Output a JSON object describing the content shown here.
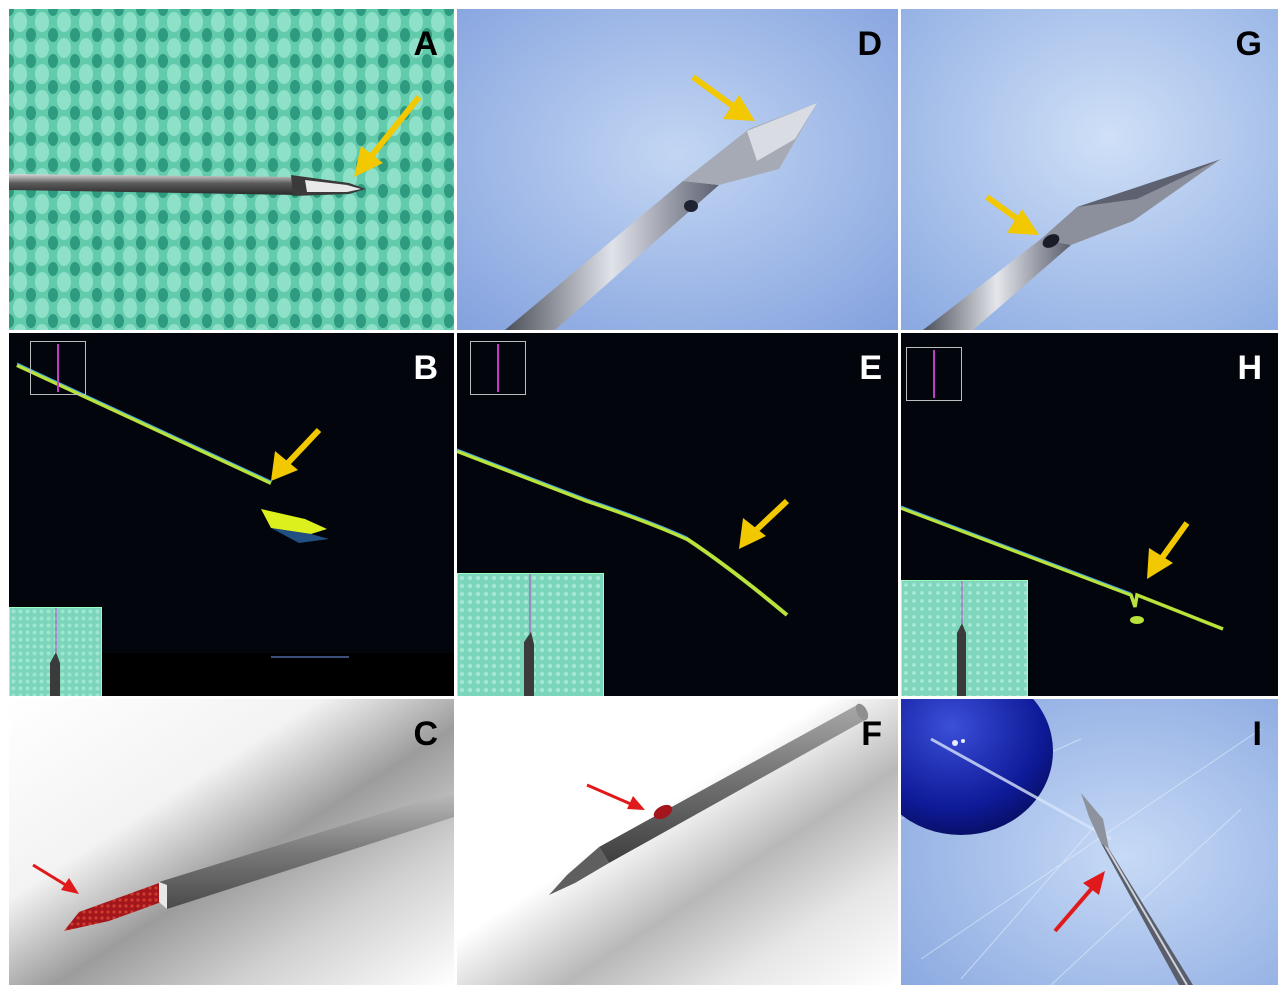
{
  "panels": [
    {
      "id": "A",
      "label": "A",
      "kind": "photo-fabric"
    },
    {
      "id": "B",
      "label": "B",
      "kind": "oct-scan"
    },
    {
      "id": "C",
      "label": "C",
      "kind": "render"
    },
    {
      "id": "D",
      "label": "D",
      "kind": "photo-blue"
    },
    {
      "id": "E",
      "label": "E",
      "kind": "oct-scan"
    },
    {
      "id": "F",
      "label": "F",
      "kind": "render"
    },
    {
      "id": "G",
      "label": "G",
      "kind": "photo-blue"
    },
    {
      "id": "H",
      "label": "H",
      "kind": "oct-scan"
    },
    {
      "id": "I",
      "label": "I",
      "kind": "photo-blue"
    }
  ],
  "colors": {
    "arrow_yellow": "#f2c800",
    "arrow_red": "#e0191b",
    "oct_background": "#03050c",
    "oct_signal": "#b9e23a",
    "fabric": "#5fc9a8",
    "microscope_blue": "#a9c4ec",
    "needle_grey": "#7d7d7d",
    "tissue_red": "#a3171c",
    "roi_marker": "#c23cc8"
  }
}
